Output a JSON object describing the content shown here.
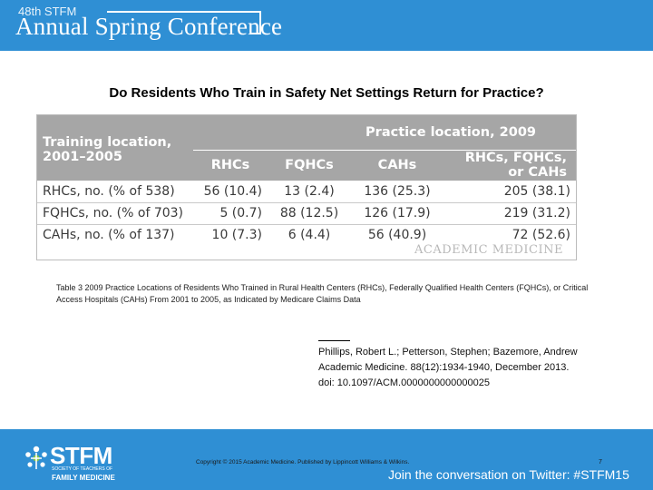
{
  "header": {
    "conference_superscript": "48th STFM",
    "conference_title": "Annual Spring Conference"
  },
  "slide": {
    "title": "Do Residents Who Train in Safety Net Settings Return for Practice?"
  },
  "table": {
    "training_header_line1": "Training location,",
    "training_header_line2": "2001–2005",
    "practice_header": "Practice location, 2009",
    "columns": [
      "RHCs",
      "FQHCs",
      "CAHs",
      "RHCs, FQHCs, or CAHs"
    ],
    "rows": [
      {
        "label": "RHCs, no. (% of 538)",
        "values": [
          "56 (10.4)",
          "13 (2.4)",
          "136 (25.3)",
          "205 (38.1)"
        ]
      },
      {
        "label": "FQHCs, no. (% of 703)",
        "values": [
          "5 (0.7)",
          "88 (12.5)",
          "126 (17.9)",
          "219 (31.2)"
        ]
      },
      {
        "label": "CAHs, no. (% of 137)",
        "values": [
          "10 (7.3)",
          "6 (4.4)",
          "56 (40.9)",
          "72 (52.6)"
        ]
      }
    ],
    "watermark": "ACADEMIC MEDICINE"
  },
  "caption": "Table 3 2009 Practice Locations of Residents Who Trained in Rural Health Centers (RHCs), Federally Qualified Health Centers (FQHCs), or Critical Access Hospitals (CAHs) From 2001 to 2005, as Indicated by Medicare Claims Data",
  "citation": {
    "authors": "Phillips, Robert L.; Petterson, Stephen; Bazemore, Andrew",
    "journal": "Academic Medicine. 88(12):1934-1940, December 2013.",
    "doi": "doi: 10.1097/ACM.0000000000000025"
  },
  "footer": {
    "logo_name": "STFM",
    "logo_sub1": "SOCIETY OF TEACHERS OF",
    "logo_sub2": "FAMILY MEDICINE",
    "copyright": "Copyright © 2015 Academic Medicine. Published by Lippincott Williams & Wilkins.",
    "page_number": "7",
    "twitter": "Join the conversation on Twitter: #STFM15"
  },
  "colors": {
    "brand_blue": "#2f8fd4",
    "table_header_gray": "#a6a6a6"
  }
}
